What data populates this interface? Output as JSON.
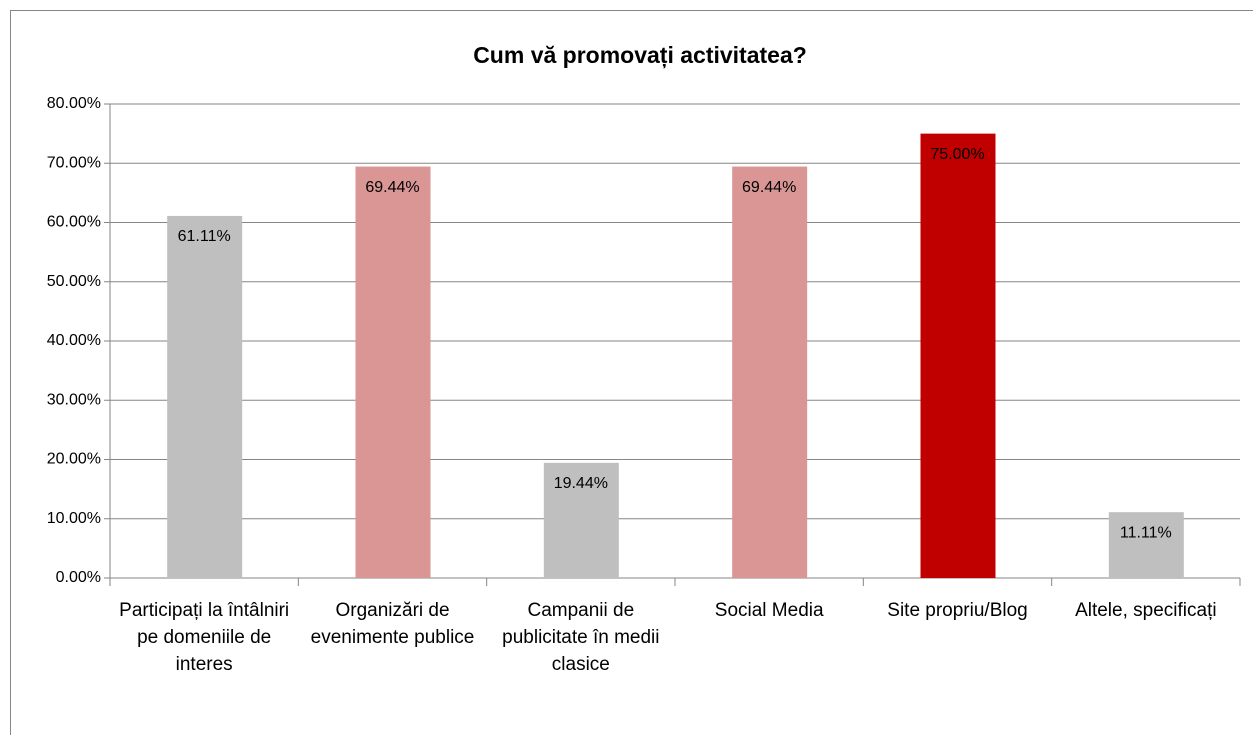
{
  "chart_data": {
    "type": "bar",
    "title": "Cum vă promovați activitatea?",
    "categories": [
      "Participați la întâlniri pe domeniile de interes",
      "Organizări de evenimente publice",
      "Campanii de publicitate în medii clasice",
      "Social Media",
      "Site propriu/Blog",
      "Altele, specificați"
    ],
    "values": [
      61.11,
      69.44,
      19.44,
      69.44,
      75.0,
      11.11
    ],
    "value_labels": [
      "61.11%",
      "69.44%",
      "19.44%",
      "69.44%",
      "75.00%",
      "11.11%"
    ],
    "colors": [
      "#bfbfbf",
      "#d99694",
      "#bfbfbf",
      "#d99694",
      "#c00000",
      "#bfbfbf"
    ],
    "ylim": [
      0,
      80
    ],
    "yticks": [
      {
        "value": 0,
        "label": "0.00%"
      },
      {
        "value": 10,
        "label": "10.00%"
      },
      {
        "value": 20,
        "label": "20.00%"
      },
      {
        "value": 30,
        "label": "30.00%"
      },
      {
        "value": 40,
        "label": "40.00%"
      },
      {
        "value": 50,
        "label": "50.00%"
      },
      {
        "value": 60,
        "label": "60.00%"
      },
      {
        "value": 70,
        "label": "70.00%"
      },
      {
        "value": 80,
        "label": "80.00%"
      }
    ],
    "grid": true
  }
}
